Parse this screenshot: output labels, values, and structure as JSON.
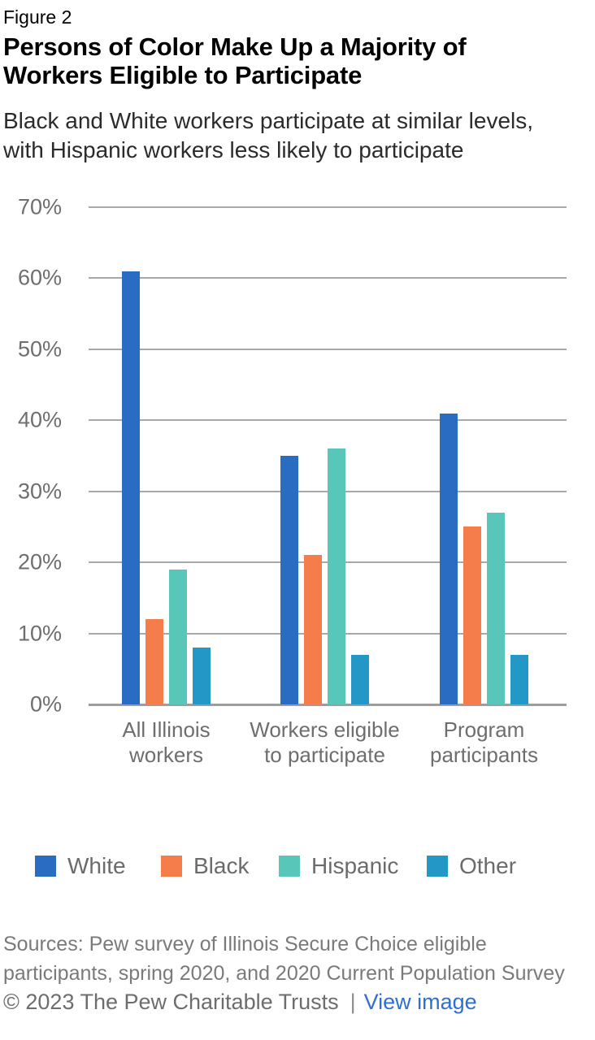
{
  "figure_label": "Figure 2",
  "title": "Persons of Color Make Up a Majority of Workers Eligible to Participate",
  "subtitle": "Black and White workers participate at similar levels, with Hispanic workers less likely to participate",
  "chart_data": {
    "type": "bar",
    "title": "Persons of Color Make Up a Majority of Workers Eligible to Participate",
    "categories": [
      "All Illinois workers",
      "Workers eligible to participate",
      "Program participants"
    ],
    "series": [
      {
        "name": "White",
        "color": "#2b6cc3",
        "values": [
          61,
          35,
          41
        ]
      },
      {
        "name": "Black",
        "color": "#f57c4b",
        "values": [
          12,
          21,
          25
        ]
      },
      {
        "name": "Hispanic",
        "color": "#58c6b9",
        "values": [
          19,
          36,
          27
        ]
      },
      {
        "name": "Other",
        "color": "#2397c5",
        "values": [
          8,
          7,
          7
        ]
      }
    ],
    "value_unit": "%",
    "ylim": [
      0,
      70
    ],
    "ytick_step": 10,
    "ytick_labels": [
      "0%",
      "10%",
      "20%",
      "30%",
      "40%",
      "50%",
      "60%",
      "70%"
    ],
    "xlabel": "",
    "ylabel": "",
    "grid": true,
    "legend_position": "bottom"
  },
  "sources": "Sources: Pew survey of Illinois Secure Choice eligible participants, spring 2020, and 2020 Current Population Survey",
  "footer": {
    "copyright": "© 2023 The Pew Charitable Trusts",
    "separator": "|",
    "link_label": "View image"
  },
  "colors": {
    "grid": "#a8a8a8",
    "baseline": "#9d9d9d",
    "axis_text": "#6e6e6e",
    "legend_text": "#6b6b6b",
    "link": "#2f6fd3"
  }
}
